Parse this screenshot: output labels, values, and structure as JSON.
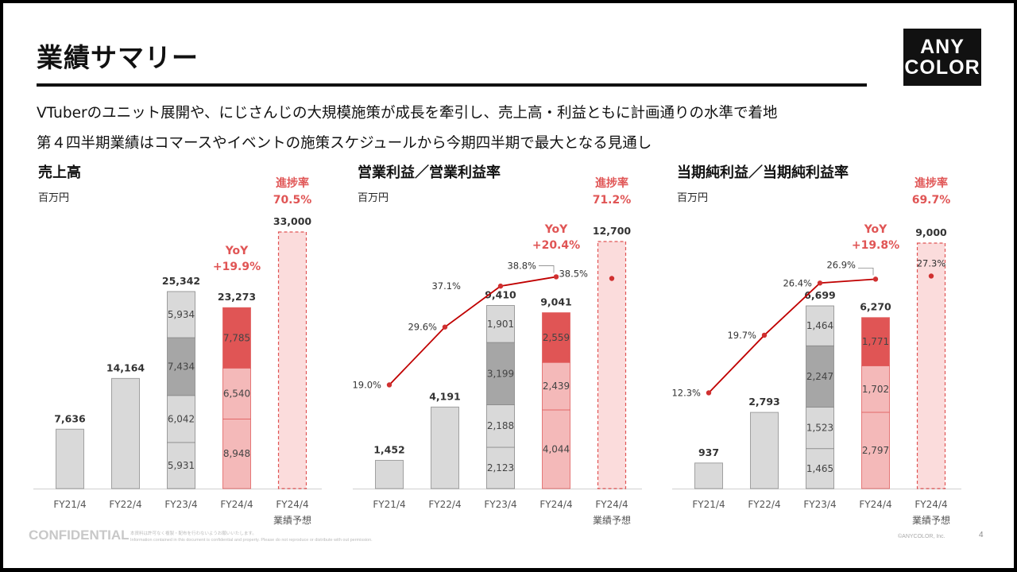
{
  "header": {
    "title": "業績サマリー",
    "logo_lines": [
      "ANY",
      "COLOR"
    ],
    "subtitles": [
      "VTuberのユニット展開や、にじさんじの大規模施策が成長を牽引し、売上高・利益ともに計画通りの水準で着地",
      "第４四半期業績はコマースやイベントの施策スケジュールから今期四半期で最大となる見通し"
    ]
  },
  "colors": {
    "base_gray": "#d9d9d9",
    "dark_gray": "#a6a6a6",
    "pink": "#f4b9b9",
    "red": "#e05555",
    "forecast_fill": "#fbdcdc",
    "accent_red": "#e05555",
    "line_red": "#c00000"
  },
  "chart_data": [
    {
      "type": "bar",
      "title": "売上高",
      "unit": "百万円",
      "categories": [
        "FY21/4",
        "FY22/4",
        "FY23/4",
        "FY24/4",
        "FY24/4\n業績予想"
      ],
      "totals": [
        7636,
        14164,
        25342,
        23273,
        33000
      ],
      "total_labels": [
        "7,636",
        "14,164",
        "25,342",
        "23,273",
        "33,000"
      ],
      "stacks": [
        [],
        [],
        [
          {
            "value": 5931,
            "label": "5,931",
            "color": "base_gray"
          },
          {
            "value": 6042,
            "label": "6,042",
            "color": "base_gray"
          },
          {
            "value": 7434,
            "label": "7,434",
            "color": "dark_gray"
          },
          {
            "value": 5934,
            "label": "5,934",
            "color": "base_gray"
          }
        ],
        [
          {
            "value": 8948,
            "label": "8,948",
            "color": "pink"
          },
          {
            "value": 6540,
            "label": "6,540",
            "color": "pink"
          },
          {
            "value": 7785,
            "label": "7,785",
            "color": "red"
          }
        ],
        []
      ],
      "forecast_index": 4,
      "progress_label": "進捗率",
      "progress": "70.5%",
      "yoy_label": "YoY",
      "yoy": "+19.9%"
    },
    {
      "type": "bar+line",
      "title": "営業利益／営業利益率",
      "unit": "百万円",
      "categories": [
        "FY21/4",
        "FY22/4",
        "FY23/4",
        "FY24/4",
        "FY24/4\n業績予想"
      ],
      "totals": [
        1452,
        4191,
        9410,
        9041,
        12700
      ],
      "total_labels": [
        "1,452",
        "4,191",
        "9,410",
        "9,041",
        "12,700"
      ],
      "stacks": [
        [],
        [],
        [
          {
            "value": 2123,
            "label": "2,123",
            "color": "base_gray"
          },
          {
            "value": 2188,
            "label": "2,188",
            "color": "base_gray"
          },
          {
            "value": 3199,
            "label": "3,199",
            "color": "dark_gray"
          },
          {
            "value": 1901,
            "label": "1,901",
            "color": "base_gray"
          }
        ],
        [
          {
            "value": 4044,
            "label": "4,044",
            "color": "pink"
          },
          {
            "value": 2439,
            "label": "2,439",
            "color": "pink"
          },
          {
            "value": 2559,
            "label": "2,559",
            "color": "red"
          }
        ],
        []
      ],
      "margin": [
        19.0,
        29.6,
        37.1,
        38.8,
        38.5
      ],
      "margin_labels": [
        "19.0%",
        "29.6%",
        "37.1%",
        "38.8%",
        "38.5%"
      ],
      "forecast_index": 4,
      "progress_label": "進捗率",
      "progress": "71.2%",
      "yoy_label": "YoY",
      "yoy": "+20.4%"
    },
    {
      "type": "bar+line",
      "title": "当期純利益／当期純利益率",
      "unit": "百万円",
      "categories": [
        "FY21/4",
        "FY22/4",
        "FY23/4",
        "FY24/4",
        "FY24/4\n業績予想"
      ],
      "totals": [
        937,
        2793,
        6699,
        6270,
        9000
      ],
      "total_labels": [
        "937",
        "2,793",
        "6,699",
        "6,270",
        "9,000"
      ],
      "stacks": [
        [],
        [],
        [
          {
            "value": 1465,
            "label": "1,465",
            "color": "base_gray"
          },
          {
            "value": 1523,
            "label": "1,523",
            "color": "base_gray"
          },
          {
            "value": 2247,
            "label": "2,247",
            "color": "dark_gray"
          },
          {
            "value": 1464,
            "label": "1,464",
            "color": "base_gray"
          }
        ],
        [
          {
            "value": 2797,
            "label": "2,797",
            "color": "pink"
          },
          {
            "value": 1702,
            "label": "1,702",
            "color": "pink"
          },
          {
            "value": 1771,
            "label": "1,771",
            "color": "red"
          }
        ],
        []
      ],
      "margin": [
        12.3,
        19.7,
        26.4,
        26.9,
        27.3
      ],
      "margin_labels": [
        "12.3%",
        "19.7%",
        "26.4%",
        "26.9%",
        "27.3%"
      ],
      "forecast_index": 4,
      "progress_label": "進捗率",
      "progress": "69.7%",
      "yoy_label": "YoY",
      "yoy": "+19.8%"
    }
  ],
  "footer": {
    "confidential": "CONFIDENTIAL",
    "notice_ja": "本資料は許可なく複製・配布を行わないようお願いいたします。",
    "notice_en": "Information contained in this document is confidential and property. Please do not reproduce or distribute with out permission.",
    "copyright": "©ANYCOLOR, Inc.",
    "page": "4"
  }
}
